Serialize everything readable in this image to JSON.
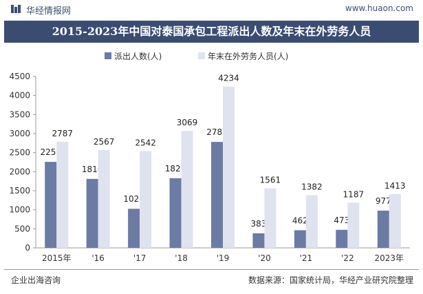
{
  "header": {
    "brand": "华经情报网",
    "site": "www.huaon.com"
  },
  "title": "2015-2023年中国对泰国承包工程派出人数及年末在外劳务人员",
  "colors": {
    "series1": "#6b7ba3",
    "series2": "#dfe3ef",
    "title_bg": "#3b4c73",
    "axis": "#999999"
  },
  "footer": {
    "left": "企业出海咨询",
    "right": "数据来源：国家统计局，华经产业研究院整理"
  },
  "chart_data": {
    "type": "bar",
    "categories": [
      "2015年",
      "'16",
      "'17",
      "'18",
      "'19",
      "'20",
      "'21",
      "'22",
      "2023年"
    ],
    "series": [
      {
        "name": "派出人数(人)",
        "values": [
          2257,
          1810,
          1026,
          1829,
          2781,
          383,
          462,
          473,
          977
        ]
      },
      {
        "name": "年末在外劳务人员(人)",
        "values": [
          2787,
          2567,
          2542,
          3069,
          4234,
          1561,
          1382,
          1187,
          1413
        ]
      }
    ],
    "ylim": [
      0,
      4500
    ],
    "yticks": [
      0,
      500,
      1000,
      1500,
      2000,
      2500,
      3000,
      3500,
      4000,
      4500
    ],
    "legend_position": "top-center",
    "grid": false,
    "data_labels": true
  }
}
